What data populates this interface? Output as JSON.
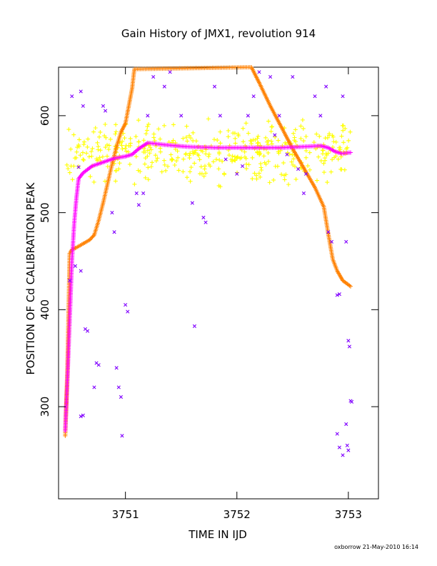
{
  "chart_data": {
    "type": "scatter",
    "title": "Gain History of JMX1, revolution 914",
    "xlabel": "TIME IN IJD",
    "ylabel": "POSITION OF Cd CALIBRATION PEAK",
    "xlim": [
      3750.4,
      3753.27
    ],
    "ylim": [
      205,
      650
    ],
    "xticks": [
      3751,
      3752,
      3753
    ],
    "yticks": [
      300,
      400,
      500,
      600
    ],
    "grid": false,
    "legend": "none",
    "footer": "oxborrow 21-May-2010 16:14",
    "colors": {
      "yellow": "#ffff00",
      "magenta": "#ff00ff",
      "orange": "#ff8000",
      "purple": "#8000ff"
    },
    "series": [
      {
        "color": "#ff8000",
        "marker": "plus",
        "points": [
          [
            3750.46,
            270
          ],
          [
            3750.48,
            340
          ],
          [
            3750.49,
            400
          ],
          [
            3750.5,
            458
          ],
          [
            3750.52,
            462
          ],
          [
            3750.56,
            464
          ],
          [
            3750.62,
            468
          ],
          [
            3750.68,
            472
          ],
          [
            3750.72,
            477
          ],
          [
            3750.76,
            492
          ],
          [
            3750.8,
            510
          ],
          [
            3750.84,
            530
          ],
          [
            3750.88,
            550
          ],
          [
            3750.92,
            568
          ],
          [
            3750.96,
            583
          ],
          [
            3751.0,
            592
          ],
          [
            3751.03,
            610
          ],
          [
            3751.06,
            628
          ],
          [
            3751.08,
            648
          ],
          [
            3752.13,
            650
          ],
          [
            3752.2,
            634
          ],
          [
            3752.3,
            610
          ],
          [
            3752.4,
            588
          ],
          [
            3752.5,
            566
          ],
          [
            3752.6,
            546
          ],
          [
            3752.7,
            526
          ],
          [
            3752.78,
            506
          ],
          [
            3752.82,
            478
          ],
          [
            3752.86,
            452
          ],
          [
            3752.9,
            440
          ],
          [
            3752.95,
            430
          ],
          [
            3753.02,
            424
          ]
        ]
      },
      {
        "color": "#ff00ff",
        "marker": "plus",
        "points": [
          [
            3750.46,
            275
          ],
          [
            3750.48,
            330
          ],
          [
            3750.5,
            390
          ],
          [
            3750.52,
            450
          ],
          [
            3750.54,
            488
          ],
          [
            3750.56,
            515
          ],
          [
            3750.58,
            535
          ],
          [
            3750.62,
            541
          ],
          [
            3750.7,
            548
          ],
          [
            3750.8,
            552
          ],
          [
            3750.9,
            556
          ],
          [
            3751.0,
            558
          ],
          [
            3751.06,
            560
          ],
          [
            3751.12,
            566
          ],
          [
            3751.2,
            572
          ],
          [
            3751.35,
            570
          ],
          [
            3751.55,
            568
          ],
          [
            3751.8,
            567
          ],
          [
            3752.1,
            567
          ],
          [
            3752.4,
            567
          ],
          [
            3752.6,
            568
          ],
          [
            3752.75,
            569
          ],
          [
            3752.82,
            567
          ],
          [
            3752.88,
            563
          ],
          [
            3752.94,
            561
          ],
          [
            3753.02,
            562
          ]
        ]
      },
      {
        "color": "#ffff00",
        "marker": "plus",
        "band": {
          "x": [
            3750.47,
            3753.03
          ],
          "y_center": 563,
          "y_spread": 28,
          "count": 430
        }
      },
      {
        "color": "#8000ff",
        "marker": "cross",
        "points": [
          [
            3750.52,
            620
          ],
          [
            3750.6,
            625
          ],
          [
            3750.62,
            610
          ],
          [
            3750.58,
            547
          ],
          [
            3750.5,
            430
          ],
          [
            3750.55,
            445
          ],
          [
            3750.6,
            440
          ],
          [
            3750.64,
            380
          ],
          [
            3750.66,
            378
          ],
          [
            3750.6,
            290
          ],
          [
            3750.62,
            291
          ],
          [
            3750.72,
            320
          ],
          [
            3750.74,
            345
          ],
          [
            3750.76,
            343
          ],
          [
            3750.8,
            610
          ],
          [
            3750.82,
            605
          ],
          [
            3750.88,
            500
          ],
          [
            3750.9,
            480
          ],
          [
            3750.92,
            340
          ],
          [
            3750.94,
            320
          ],
          [
            3750.96,
            310
          ],
          [
            3750.97,
            270
          ],
          [
            3751.0,
            405
          ],
          [
            3751.02,
            398
          ],
          [
            3751.1,
            520
          ],
          [
            3751.12,
            508
          ],
          [
            3751.16,
            520
          ],
          [
            3751.2,
            600
          ],
          [
            3751.25,
            640
          ],
          [
            3751.35,
            630
          ],
          [
            3751.4,
            645
          ],
          [
            3751.5,
            600
          ],
          [
            3751.6,
            510
          ],
          [
            3751.62,
            383
          ],
          [
            3751.7,
            495
          ],
          [
            3751.72,
            490
          ],
          [
            3751.8,
            630
          ],
          [
            3751.85,
            600
          ],
          [
            3751.9,
            555
          ],
          [
            3752.0,
            540
          ],
          [
            3752.05,
            548
          ],
          [
            3752.1,
            600
          ],
          [
            3752.15,
            620
          ],
          [
            3752.2,
            645
          ],
          [
            3752.3,
            640
          ],
          [
            3752.34,
            580
          ],
          [
            3752.38,
            600
          ],
          [
            3752.45,
            560
          ],
          [
            3752.5,
            640
          ],
          [
            3752.55,
            545
          ],
          [
            3752.6,
            520
          ],
          [
            3752.62,
            540
          ],
          [
            3752.7,
            620
          ],
          [
            3752.75,
            600
          ],
          [
            3752.8,
            630
          ],
          [
            3752.82,
            480
          ],
          [
            3752.85,
            470
          ],
          [
            3752.9,
            415
          ],
          [
            3752.92,
            416
          ],
          [
            3752.95,
            620
          ],
          [
            3752.98,
            470
          ],
          [
            3753.0,
            368
          ],
          [
            3753.01,
            362
          ],
          [
            3753.02,
            306
          ],
          [
            3753.03,
            305
          ],
          [
            3752.95,
            250
          ],
          [
            3752.98,
            282
          ],
          [
            3752.99,
            260
          ],
          [
            3753.0,
            255
          ],
          [
            3752.9,
            272
          ],
          [
            3752.92,
            258
          ]
        ]
      }
    ]
  }
}
